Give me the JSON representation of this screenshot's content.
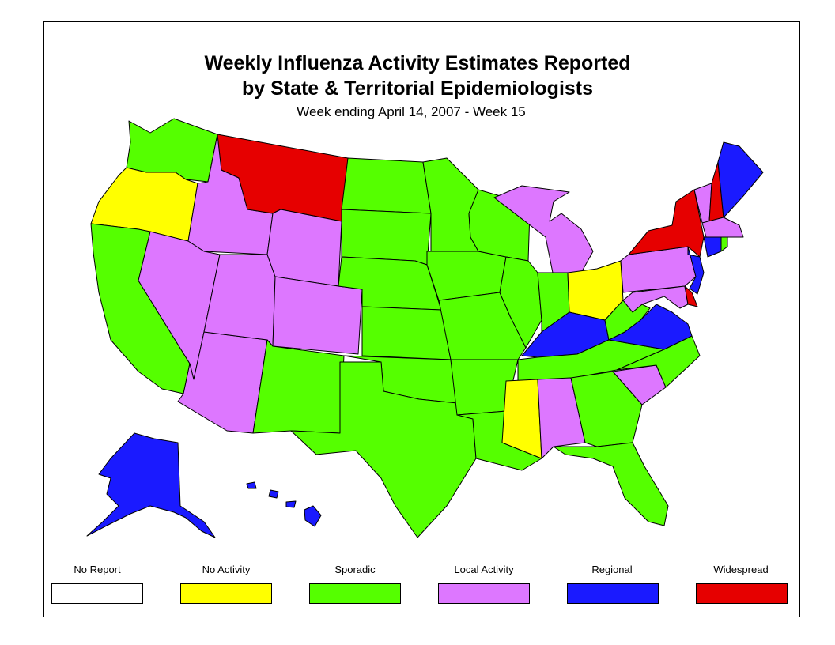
{
  "title_line1": "Weekly Influenza Activity Estimates Reported",
  "title_line2": "by State & Territorial Epidemiologists",
  "subtitle": "Week ending April 14, 2007 - Week 15",
  "colors": {
    "no_report": "#ffffff",
    "no_activity": "#ffff00",
    "sporadic": "#55ff00",
    "local": "#dd77ff",
    "regional": "#1a1aff",
    "widespread": "#e60000"
  },
  "legend": [
    {
      "label": "No Report",
      "level": "no_report"
    },
    {
      "label": "No Activity",
      "level": "no_activity"
    },
    {
      "label": "Sporadic",
      "level": "sporadic"
    },
    {
      "label": "Local Activity",
      "level": "local"
    },
    {
      "label": "Regional",
      "level": "regional"
    },
    {
      "label": "Widespread",
      "level": "widespread"
    }
  ],
  "states": {
    "WA": "sporadic",
    "OR": "no_activity",
    "CA": "sporadic",
    "ID": "local",
    "NV": "local",
    "AZ": "local",
    "UT": "local",
    "MT": "widespread",
    "WY": "local",
    "CO": "local",
    "NM": "sporadic",
    "ND": "sporadic",
    "SD": "sporadic",
    "NE": "sporadic",
    "KS": "sporadic",
    "OK": "sporadic",
    "TX": "sporadic",
    "MN": "sporadic",
    "IA": "sporadic",
    "MO": "sporadic",
    "AR": "sporadic",
    "LA": "sporadic",
    "WI": "sporadic",
    "IL": "sporadic",
    "MI": "local",
    "IN": "sporadic",
    "OH": "no_activity",
    "KY": "regional",
    "TN": "sporadic",
    "MS": "no_activity",
    "AL": "local",
    "GA": "sporadic",
    "FL": "sporadic",
    "SC": "local",
    "NC": "sporadic",
    "VA": "regional",
    "WV": "sporadic",
    "PA": "local",
    "NY": "widespread",
    "VT": "local",
    "NH": "widespread",
    "ME": "regional",
    "MA": "local",
    "RI": "sporadic",
    "CT": "regional",
    "NJ": "regional",
    "DE": "widespread",
    "MD": "local",
    "AK": "regional",
    "HI": "regional"
  }
}
